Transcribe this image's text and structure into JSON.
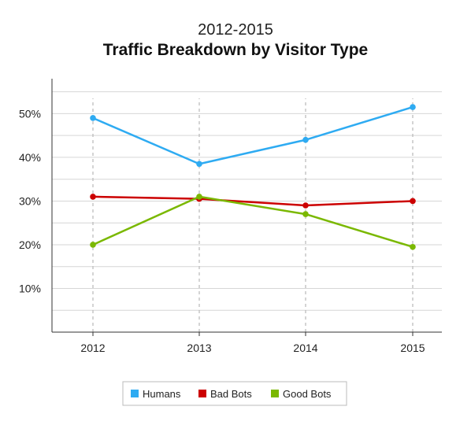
{
  "chart_data": {
    "type": "line",
    "subtitle": "2012-2015",
    "title": "Traffic Breakdown by Visitor Type",
    "xlabel": "",
    "ylabel": "",
    "categories": [
      "2012",
      "2013",
      "2014",
      "2015"
    ],
    "y_ticks": [
      "10%",
      "20%",
      "30%",
      "40%",
      "50%"
    ],
    "ylim": [
      0,
      58
    ],
    "grid": true,
    "legend_position": "bottom",
    "series": [
      {
        "name": "Humans",
        "color": "#2eabf2",
        "values": [
          49,
          38.5,
          44,
          51.5
        ]
      },
      {
        "name": "Bad Bots",
        "color": "#cc0000",
        "values": [
          31,
          30.5,
          29,
          30
        ]
      },
      {
        "name": "Good Bots",
        "color": "#7ab800",
        "values": [
          20,
          31,
          27,
          19.5
        ]
      }
    ]
  }
}
